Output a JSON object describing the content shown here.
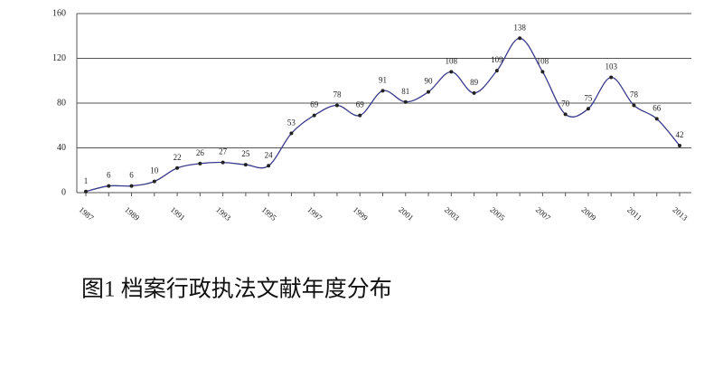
{
  "chart_data": {
    "type": "line",
    "title": "图1 档案行政执法文献年度分布",
    "categories": [
      "1987",
      null,
      "1989",
      null,
      "1991",
      null,
      "1993",
      null,
      "1995",
      null,
      "1997",
      null,
      "1999",
      null,
      "2001",
      null,
      "2003",
      null,
      "2005",
      null,
      "2007",
      null,
      "2009",
      null,
      "2011",
      null,
      "2013"
    ],
    "values": [
      1,
      6,
      6,
      10,
      22,
      26,
      27,
      25,
      24,
      53,
      69,
      78,
      69,
      91,
      81,
      90,
      108,
      89,
      109,
      138,
      108,
      70,
      75,
      103,
      78,
      66,
      42
    ],
    "color": "#3a3a8c",
    "ylim": [
      0,
      160
    ],
    "yticks": [
      0,
      40,
      80,
      120,
      160
    ],
    "grid": true
  }
}
